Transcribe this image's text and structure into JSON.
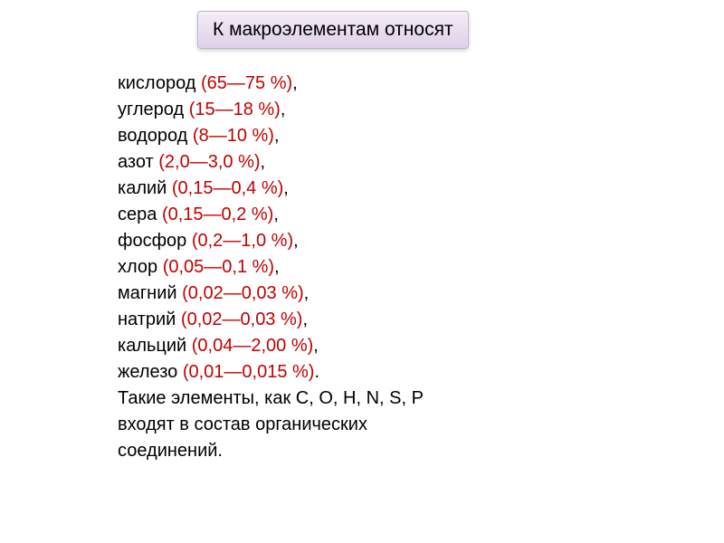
{
  "title": "К макроэлементам относят",
  "elements": [
    {
      "name": "кислород ",
      "value": "(65—75 %)",
      "suffix": ",",
      "indent": false
    },
    {
      "name": "углерод ",
      "value": "(15—18 %)",
      "suffix": ",",
      "indent": false
    },
    {
      "name": "водород ",
      "value": "(8—10 %)",
      "suffix": ",",
      "indent": false
    },
    {
      "name": "азот ",
      "value": "(2,0—3,0 %)",
      "suffix": ",",
      "indent": false
    },
    {
      "name": " калий ",
      "value": "(0,15—0,4 %)",
      "suffix": ",",
      "indent": true
    },
    {
      "name": "сера ",
      "value": "(0,15—0,2 %)",
      "suffix": ",",
      "indent": false
    },
    {
      "name": "фосфор ",
      "value": "(0,2—1,0 %)",
      "suffix": ",",
      "indent": false
    },
    {
      "name": " хлор ",
      "value": "(0,05—0,1 %)",
      "suffix": ",",
      "indent": true
    },
    {
      "name": " магний ",
      "value": "(0,02—0,03 %)",
      "suffix": ",",
      "indent": true
    },
    {
      "name": "натрий ",
      "value": "(0,02—0,03 %)",
      "suffix": ",",
      "indent": false
    },
    {
      "name": "кальций ",
      "value": "(0,04—2,00 %)",
      "suffix": ",",
      "indent": false
    },
    {
      "name": " железо ",
      "value": "(0,01—0,015 %)",
      "suffix": ".",
      "indent": true
    }
  ],
  "footer": {
    "line1": "Такие элементы, как C, O, H, N, S, P",
    "line2": "входят в состав органических",
    "line3": "соединений."
  },
  "colors": {
    "value_color": "#c00000",
    "text_color": "#000000",
    "background": "#ffffff",
    "header_gradient_top": "#f4eef8",
    "header_gradient_bottom": "#ddd0e8",
    "header_border": "#c0b0d0"
  },
  "typography": {
    "body_fontsize": 20,
    "header_fontsize": 21,
    "font_family": "Arial"
  }
}
